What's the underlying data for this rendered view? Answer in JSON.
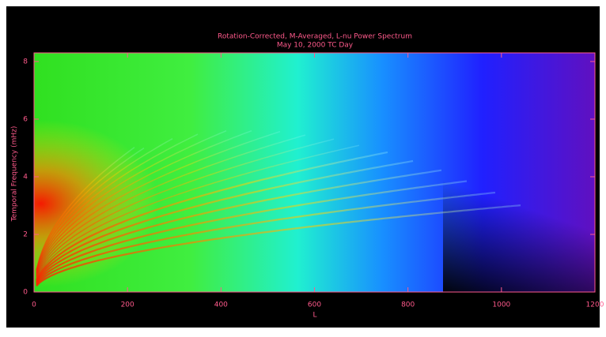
{
  "chart_data": {
    "type": "heatmap",
    "title": "Rotation-Corrected, M-Averaged, L-nu Power Spectrum",
    "subtitle": "May 10, 2000 TC Day",
    "xlabel": "L",
    "ylabel": "Temporal Frequency (mHz)",
    "xlim": [
      0,
      1200
    ],
    "ylim": [
      0,
      8.3
    ],
    "xticks": [
      0,
      200,
      400,
      600,
      800,
      1000,
      1200
    ],
    "yticks": [
      0,
      2,
      4,
      6,
      8
    ],
    "axis_color": "#ff5a8c"
  }
}
